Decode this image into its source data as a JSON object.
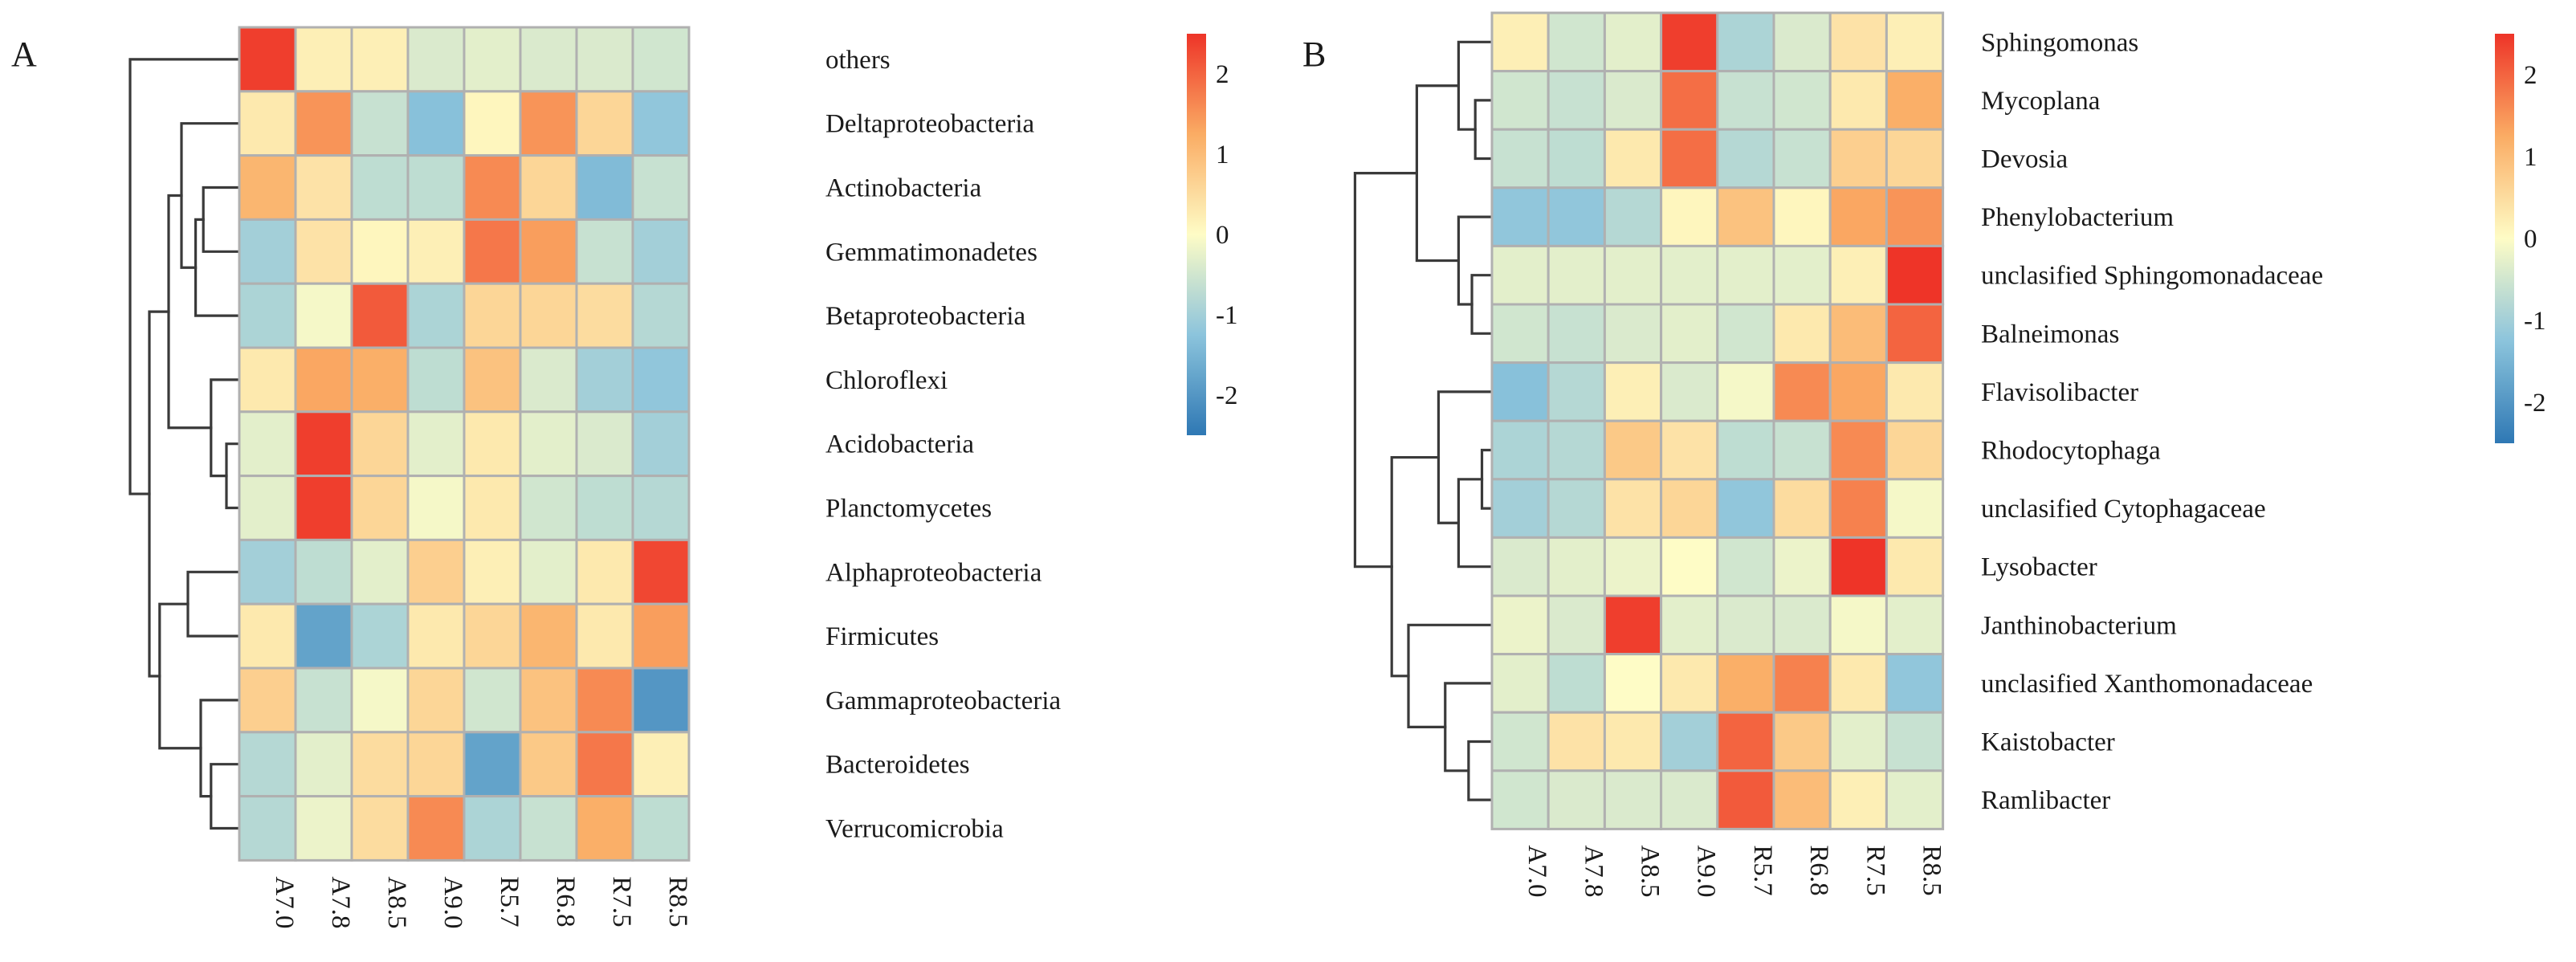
{
  "chart_data": [
    {
      "type": "heatmap",
      "panel": "A",
      "columns": [
        "A7.0",
        "A7.8",
        "A8.5",
        "A9.0",
        "R5.7",
        "R6.8",
        "R7.5",
        "R8.5"
      ],
      "rows": [
        "others",
        "Deltaproteobacteria",
        "Actinobacteria",
        "Gemmatimonadetes",
        "Betaproteobacteria",
        "Chloroflexi",
        "Acidobacteria",
        "Planctomycetes",
        "Alphaproteobacteria",
        "Firmicutes",
        "Gammaproteobacteria",
        "Bacteroidetes",
        "Verrucomicrobia"
      ],
      "values": [
        [
          2.4,
          0.2,
          0.2,
          -0.4,
          -0.3,
          -0.4,
          -0.4,
          -0.5
        ],
        [
          0.3,
          1.5,
          -0.6,
          -1.3,
          0.1,
          1.5,
          0.6,
          -1.2
        ],
        [
          1.1,
          0.4,
          -0.7,
          -0.7,
          1.6,
          0.6,
          -1.4,
          -0.6
        ],
        [
          -1.0,
          0.4,
          0.1,
          0.2,
          1.8,
          1.4,
          -0.6,
          -1.0
        ],
        [
          -0.9,
          -0.1,
          2.1,
          -0.9,
          0.6,
          0.6,
          0.5,
          -0.8
        ],
        [
          0.3,
          1.3,
          1.2,
          -0.7,
          0.9,
          -0.4,
          -1.0,
          -1.2
        ],
        [
          -0.3,
          2.4,
          0.6,
          -0.3,
          0.3,
          -0.3,
          -0.4,
          -1.0
        ],
        [
          -0.3,
          2.4,
          0.6,
          -0.1,
          0.3,
          -0.5,
          -0.7,
          -0.8
        ],
        [
          -1.0,
          -0.7,
          -0.3,
          0.7,
          0.2,
          -0.3,
          0.3,
          2.3
        ],
        [
          0.3,
          -1.8,
          -0.9,
          0.3,
          0.6,
          1.1,
          0.3,
          1.4
        ],
        [
          0.7,
          -0.6,
          -0.1,
          0.6,
          -0.5,
          0.9,
          1.6,
          -2.0
        ],
        [
          -0.8,
          -0.3,
          0.5,
          0.6,
          -1.8,
          0.8,
          1.8,
          0.2
        ],
        [
          -0.8,
          -0.2,
          0.5,
          1.6,
          -0.9,
          -0.6,
          1.2,
          -0.7
        ]
      ],
      "colorbar": {
        "ticks": [
          2,
          1,
          0,
          -1,
          -2
        ],
        "range": [
          -2.5,
          2.5
        ]
      }
    },
    {
      "type": "heatmap",
      "panel": "B",
      "columns": [
        "A7.0",
        "A7.8",
        "A8.5",
        "A9.0",
        "R5.7",
        "R6.8",
        "R7.5",
        "R8.5"
      ],
      "rows": [
        "Sphingomonas",
        "Mycoplana",
        "Devosia",
        "Phenylobacterium",
        "unclasified  Sphingomonadaceae",
        "Balneimonas",
        "Flavisolibacter",
        "Rhodocytophaga",
        "unclasified  Cytophagaceae",
        "Lysobacter",
        "Janthinobacterium",
        "unclasified  Xanthomonadaceae",
        "Kaistobacter",
        "Ramlibacter"
      ],
      "values": [
        [
          0.2,
          -0.5,
          -0.3,
          2.4,
          -0.9,
          -0.4,
          0.4,
          0.2
        ],
        [
          -0.5,
          -0.6,
          -0.4,
          1.9,
          -0.6,
          -0.5,
          0.3,
          1.2
        ],
        [
          -0.6,
          -0.7,
          0.3,
          1.9,
          -0.8,
          -0.6,
          0.7,
          0.6
        ],
        [
          -1.2,
          -1.2,
          -0.8,
          0.1,
          0.9,
          0.1,
          1.3,
          1.5
        ],
        [
          -0.3,
          -0.3,
          -0.3,
          -0.3,
          -0.3,
          -0.3,
          0.2,
          2.5
        ],
        [
          -0.5,
          -0.6,
          -0.4,
          -0.3,
          -0.5,
          0.3,
          1.0,
          2.0
        ],
        [
          -1.3,
          -0.8,
          0.2,
          -0.4,
          -0.1,
          1.6,
          1.3,
          0.3
        ],
        [
          -0.9,
          -0.8,
          0.8,
          0.4,
          -0.7,
          -0.6,
          1.6,
          0.6
        ],
        [
          -1.0,
          -0.8,
          0.4,
          0.6,
          -1.2,
          0.5,
          1.7,
          -0.1
        ],
        [
          -0.4,
          -0.3,
          -0.2,
          0.0,
          -0.5,
          -0.2,
          2.5,
          0.3
        ],
        [
          -0.2,
          -0.4,
          2.4,
          -0.3,
          -0.4,
          -0.4,
          -0.1,
          -0.3
        ],
        [
          -0.3,
          -0.7,
          0.0,
          0.3,
          1.2,
          1.7,
          0.3,
          -1.2
        ],
        [
          -0.5,
          0.4,
          0.3,
          -1.0,
          2.0,
          0.8,
          -0.3,
          -0.6
        ],
        [
          -0.5,
          -0.4,
          -0.4,
          -0.4,
          2.1,
          1.0,
          0.2,
          -0.3
        ]
      ],
      "colorbar": {
        "ticks": [
          2,
          1,
          0,
          -1,
          -2
        ],
        "range": [
          -2.5,
          2.5
        ]
      }
    }
  ]
}
